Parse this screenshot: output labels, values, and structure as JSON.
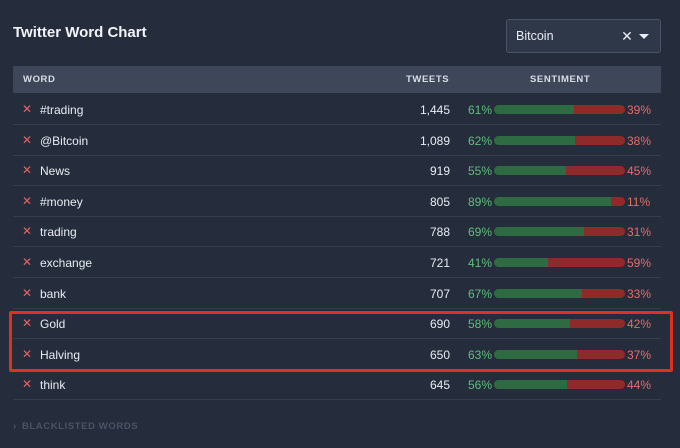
{
  "title": "Twitter Word Chart",
  "filter": {
    "value": "Bitcoin"
  },
  "columns": {
    "word": "WORD",
    "tweets": "TWEETS",
    "sentiment": "SENTIMENT"
  },
  "rows": [
    {
      "word": "#trading",
      "tweets": "1,445",
      "pos": "61%",
      "neg": "39%",
      "pos_value": 61
    },
    {
      "word": "@Bitcoin",
      "tweets": "1,089",
      "pos": "62%",
      "neg": "38%",
      "pos_value": 62
    },
    {
      "word": "News",
      "tweets": "919",
      "pos": "55%",
      "neg": "45%",
      "pos_value": 55
    },
    {
      "word": "#money",
      "tweets": "805",
      "pos": "89%",
      "neg": "11%",
      "pos_value": 89
    },
    {
      "word": "trading",
      "tweets": "788",
      "pos": "69%",
      "neg": "31%",
      "pos_value": 69
    },
    {
      "word": "exchange",
      "tweets": "721",
      "pos": "41%",
      "neg": "59%",
      "pos_value": 41
    },
    {
      "word": "bank",
      "tweets": "707",
      "pos": "67%",
      "neg": "33%",
      "pos_value": 67
    },
    {
      "word": "Gold",
      "tweets": "690",
      "pos": "58%",
      "neg": "42%",
      "pos_value": 58
    },
    {
      "word": "Halving",
      "tweets": "650",
      "pos": "63%",
      "neg": "37%",
      "pos_value": 63
    },
    {
      "word": "think",
      "tweets": "645",
      "pos": "56%",
      "neg": "44%",
      "pos_value": 56
    }
  ],
  "blacklist_label": "BLACKLISTED WORDS",
  "colors": {
    "positive": "#5ec07a",
    "negative": "#e86a6a",
    "highlight": "#e0301e"
  }
}
